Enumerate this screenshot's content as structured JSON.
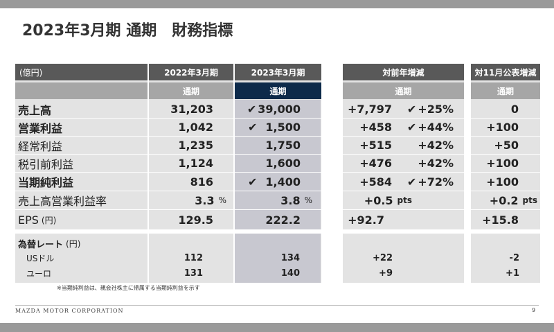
{
  "title": "2023年3月期 通期　財務指標",
  "header": {
    "unit": "(億円)",
    "col_2022": "2022年3月期",
    "col_2023": "2023年3月期",
    "col_yoy": "対前年増減",
    "col_nov": "対11月公表増減",
    "sub_full": "通期"
  },
  "rows": [
    {
      "label": "売上高",
      "bold": true,
      "v2022": "31,203",
      "v2023": "39,000",
      "v2023_check": true,
      "yoy": "+7,797",
      "yoy_pct": "+25%",
      "yoy_check": true,
      "nov": "0"
    },
    {
      "label": "営業利益",
      "bold": true,
      "v2022": "1,042",
      "v2023": "1,500",
      "v2023_check": true,
      "yoy": "+458",
      "yoy_pct": "+44%",
      "yoy_check": true,
      "nov": "+100"
    },
    {
      "label": "経常利益",
      "bold": false,
      "v2022": "1,235",
      "v2023": "1,750",
      "v2023_check": false,
      "yoy": "+515",
      "yoy_pct": "+42%",
      "yoy_check": false,
      "nov": "+50"
    },
    {
      "label": "税引前利益",
      "bold": false,
      "v2022": "1,124",
      "v2023": "1,600",
      "v2023_check": false,
      "yoy": "+476",
      "yoy_pct": "+42%",
      "yoy_check": false,
      "nov": "+100"
    },
    {
      "label": "当期純利益",
      "bold": true,
      "v2022": "816",
      "v2023": "1,400",
      "v2023_check": true,
      "yoy": "+584",
      "yoy_pct": "+72%",
      "yoy_check": true,
      "nov": "+100"
    },
    {
      "label": "売上高営業利益率",
      "bold": false,
      "v2022": "3.3",
      "v2022_unit": "%",
      "v2023": "3.8",
      "v2023_unit": "%",
      "yoy": "+0.5",
      "yoy_unit": "pts",
      "nov": "+0.2",
      "nov_unit": "pts"
    },
    {
      "label": "EPS",
      "label_unit": "(円)",
      "bold": false,
      "v2022": "129.5",
      "v2023": "222.2",
      "yoy": "+92.7",
      "nov": "+15.8"
    }
  ],
  "fx": {
    "label": "為替レート",
    "label_unit": "(円)",
    "items": [
      {
        "label": "USドル",
        "v2022": "112",
        "v2023": "134",
        "yoy": "+22",
        "nov": "-2"
      },
      {
        "label": "ユーロ",
        "v2022": "131",
        "v2023": "140",
        "yoy": "+9",
        "nov": "+1"
      }
    ]
  },
  "checkmark": "✔",
  "footnote": "※当期純利益は、親会社株主に帰属する当期純利益を示す",
  "brand": "MAZDA MOTOR CORPORATION",
  "page_number": "9"
}
